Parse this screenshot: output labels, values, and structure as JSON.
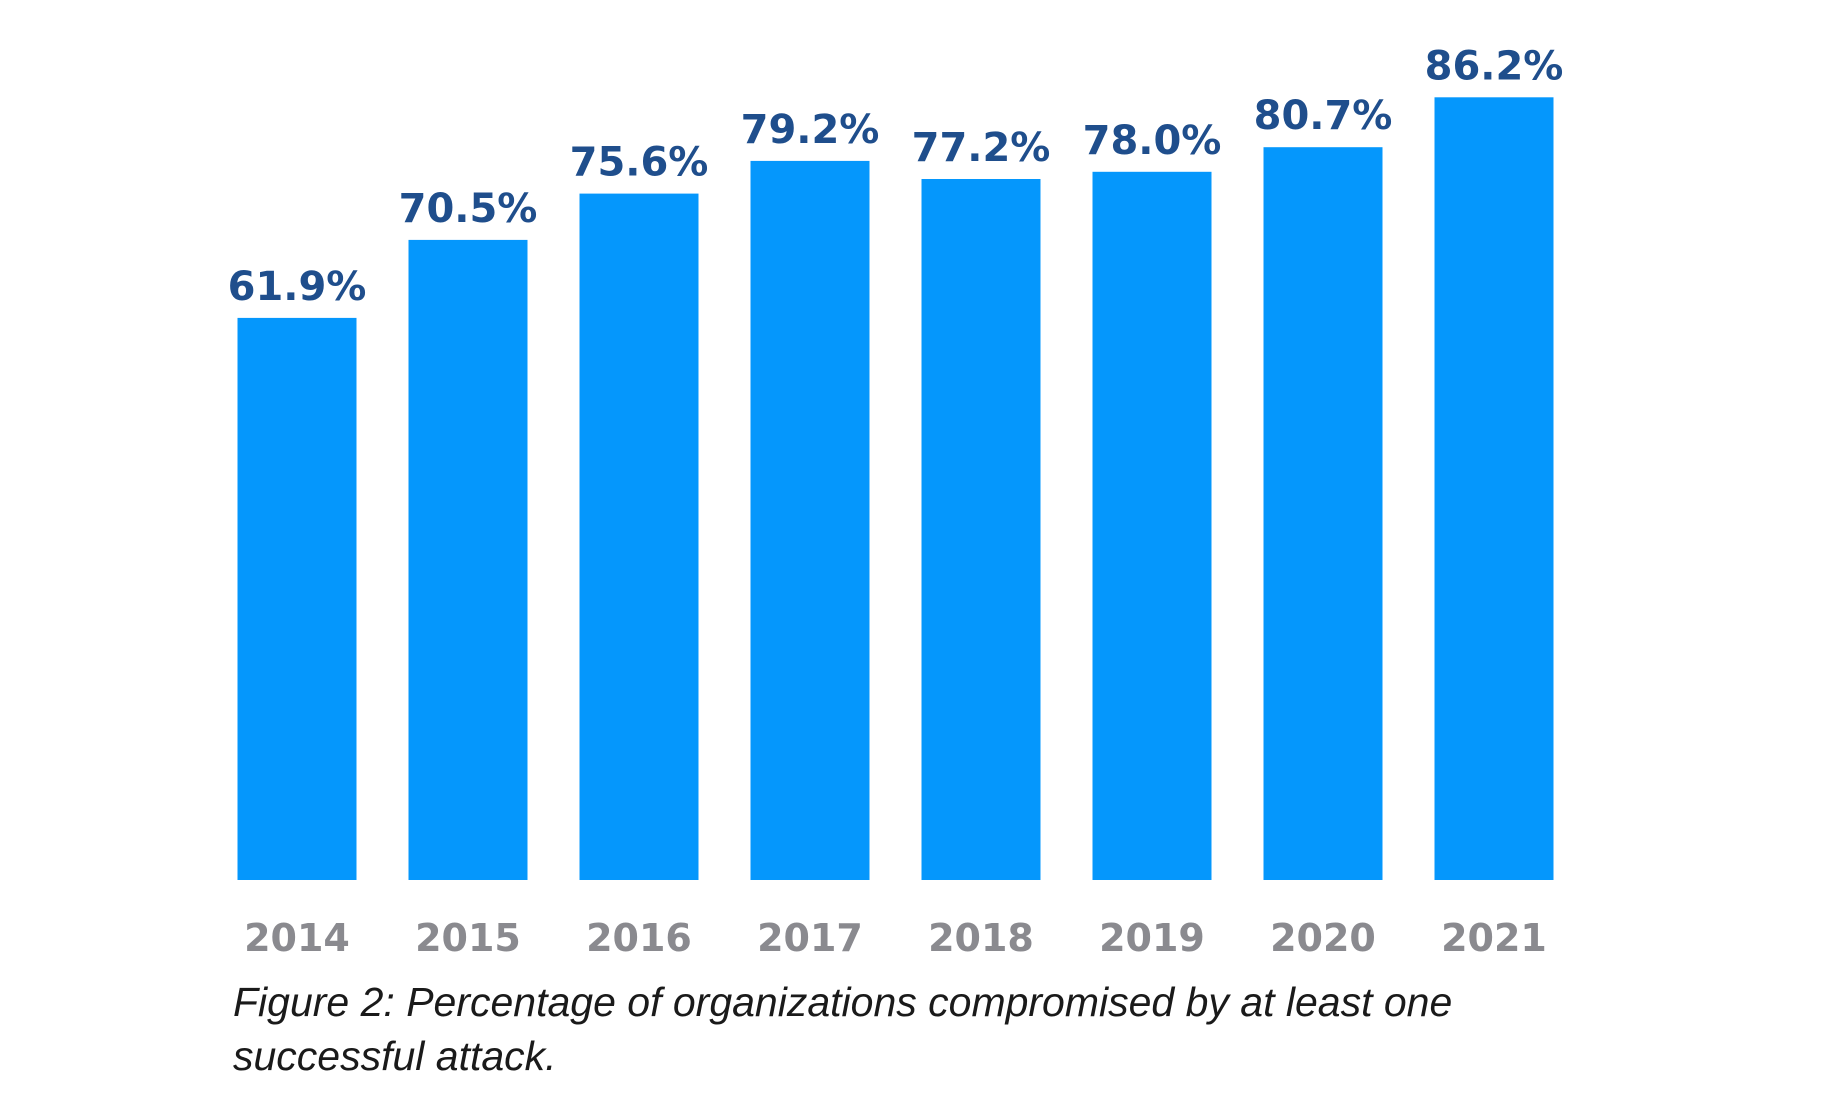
{
  "chart_data": {
    "type": "bar",
    "categories": [
      "2014",
      "2015",
      "2016",
      "2017",
      "2018",
      "2019",
      "2020",
      "2021"
    ],
    "values": [
      61.9,
      70.5,
      75.6,
      79.2,
      77.2,
      78.0,
      80.7,
      86.2
    ],
    "value_labels": [
      "61.9%",
      "70.5%",
      "75.6%",
      "79.2%",
      "77.2%",
      "78.0%",
      "80.7%",
      "86.2%"
    ],
    "ylim": [
      0,
      100
    ],
    "grid": false,
    "legend": "none",
    "colors": {
      "bar": "#0597fc",
      "value_label": "#1f4e8c",
      "tick_label": "#8a8a8f"
    }
  },
  "caption": "Figure 2: Percentage of organizations compromised by at least one successful attack."
}
